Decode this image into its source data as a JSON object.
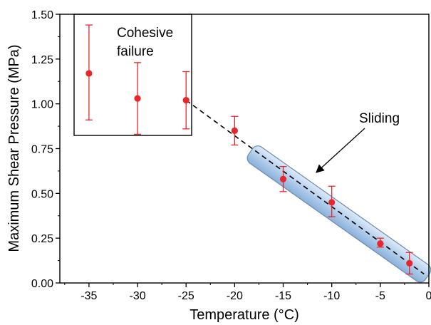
{
  "chart_data": {
    "type": "scatter",
    "title": "",
    "xlabel": "Temperature (°C)",
    "ylabel": "Maximum Shear Pressure (MPa)",
    "xlim": [
      -38,
      0
    ],
    "ylim": [
      0,
      1.5
    ],
    "x_ticks": [
      -35,
      -30,
      -25,
      -20,
      -15,
      -10,
      -5,
      0
    ],
    "x_tick_labels": [
      "-35",
      "-30",
      "-25",
      "-20",
      "-15",
      "-10",
      "-5",
      "0"
    ],
    "y_ticks": [
      0,
      0.25,
      0.5,
      0.75,
      1.0,
      1.25,
      1.5
    ],
    "y_tick_labels": [
      "0.00",
      "0.25",
      "0.50",
      "0.75",
      "1.00",
      "1.25",
      "1.50"
    ],
    "grid": false,
    "series": [
      {
        "color": "#e8262b",
        "points": [
          {
            "x": -35,
            "y": 1.17,
            "err_low": 0.91,
            "err_high": 1.44
          },
          {
            "x": -30,
            "y": 1.03,
            "err_low": 0.83,
            "err_high": 1.23
          },
          {
            "x": -25,
            "y": 1.02,
            "err_low": 0.86,
            "err_high": 1.18
          },
          {
            "x": -20,
            "y": 0.85,
            "err_low": 0.77,
            "err_high": 0.93
          },
          {
            "x": -15,
            "y": 0.58,
            "err_low": 0.51,
            "err_high": 0.65
          },
          {
            "x": -10,
            "y": 0.45,
            "err_low": 0.37,
            "err_high": 0.54
          },
          {
            "x": -5,
            "y": 0.22,
            "err_low": 0.2,
            "err_high": 0.25
          },
          {
            "x": -2,
            "y": 0.11,
            "err_low": 0.05,
            "err_high": 0.17
          }
        ]
      }
    ],
    "trend_line": {
      "from": {
        "x": -25,
        "y": 1.02
      },
      "to": {
        "x": -0.5,
        "y": 0.05
      },
      "style": "dashed",
      "color": "#000000"
    },
    "sliding_band": {
      "from": {
        "x": -18,
        "y": 0.72
      },
      "to": {
        "x": -0.5,
        "y": 0.05
      },
      "color": "#a9c8ea"
    },
    "annotations": {
      "cohesive_line1": "Cohesive",
      "cohesive_line2": "failure",
      "sliding": "Sliding"
    }
  }
}
